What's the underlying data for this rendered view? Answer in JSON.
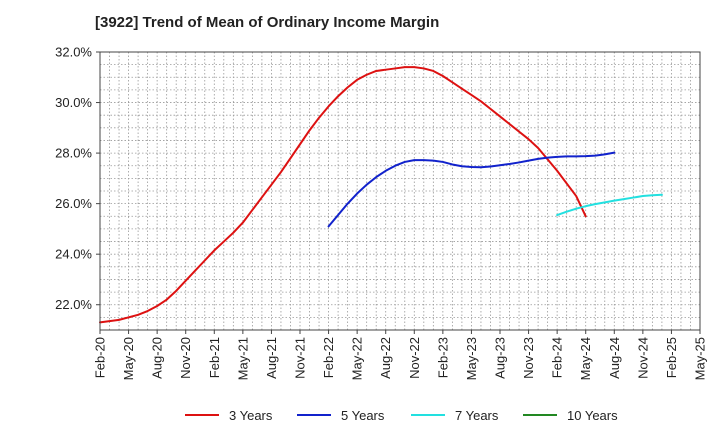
{
  "chart_data": {
    "type": "line",
    "title": "[3922]  Trend of Mean of Ordinary Income Margin",
    "xlabel": "",
    "ylabel": "",
    "x_ticks": [
      "Feb-20",
      "May-20",
      "Aug-20",
      "Nov-20",
      "Feb-21",
      "May-21",
      "Aug-21",
      "Nov-21",
      "Feb-22",
      "May-22",
      "Aug-22",
      "Nov-22",
      "Feb-23",
      "May-23",
      "Aug-23",
      "Nov-23",
      "Feb-24",
      "May-24",
      "Aug-24",
      "Nov-24",
      "Feb-25",
      "May-25"
    ],
    "y_ticks": [
      "22.0%",
      "24.0%",
      "26.0%",
      "28.0%",
      "30.0%",
      "32.0%"
    ],
    "ylim": [
      21.0,
      32.0
    ],
    "grid": true,
    "legend_position": "bottom",
    "series": [
      {
        "name": "3 Years",
        "color": "#dd1111",
        "x_start": "Feb-20",
        "values": [
          21.3,
          21.35,
          21.4,
          21.5,
          21.6,
          21.75,
          21.95,
          22.2,
          22.55,
          22.95,
          23.35,
          23.75,
          24.15,
          24.5,
          24.85,
          25.25,
          25.75,
          26.25,
          26.75,
          27.25,
          27.8,
          28.35,
          28.9,
          29.4,
          29.85,
          30.25,
          30.6,
          30.9,
          31.1,
          31.25,
          31.3,
          31.35,
          31.4,
          31.4,
          31.35,
          31.25,
          31.05,
          30.8,
          30.55,
          30.3,
          30.05,
          29.75,
          29.45,
          29.15,
          28.85,
          28.55,
          28.2,
          27.75,
          27.3,
          26.8,
          26.3,
          25.5
        ]
      },
      {
        "name": "5 Years",
        "color": "#1122cc",
        "x_start": "Feb-22",
        "values": [
          25.1,
          25.55,
          26.0,
          26.4,
          26.75,
          27.05,
          27.3,
          27.5,
          27.65,
          27.72,
          27.72,
          27.7,
          27.65,
          27.55,
          27.48,
          27.45,
          27.44,
          27.47,
          27.52,
          27.57,
          27.63,
          27.7,
          27.77,
          27.82,
          27.85,
          27.87,
          27.87,
          27.88,
          27.9,
          27.95,
          28.02
        ]
      },
      {
        "name": "7 Years",
        "color": "#22e0e0",
        "x_start": "Feb-24",
        "values": [
          25.55,
          25.68,
          25.8,
          25.9,
          25.98,
          26.05,
          26.12,
          26.18,
          26.24,
          26.3,
          26.33,
          26.35
        ]
      },
      {
        "name": "10 Years",
        "color": "#228822",
        "x_start": "Feb-25",
        "values": []
      }
    ]
  }
}
